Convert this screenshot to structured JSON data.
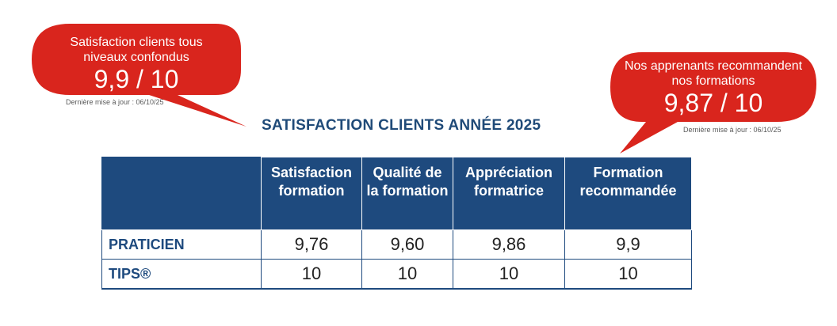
{
  "bubbles": {
    "left": {
      "caption_line1": "Satisfaction clients tous",
      "caption_line2": "niveaux confondus",
      "score": "9,9 / 10",
      "update_note": "Dernière mise à jour : 06/10/25"
    },
    "right": {
      "caption_line1": "Nos apprenants recommandent",
      "caption_line2": "nos formations",
      "score": "9,87 / 10",
      "update_note": "Dernière mise à jour : 06/10/25"
    }
  },
  "title": "SATISFACTION CLIENTS ANNÉE  2025",
  "table": {
    "headers": [
      "",
      "Satisfaction formation",
      "Qualité de la formation",
      "Appréciation formatrice",
      "Formation recommandée"
    ],
    "rows": [
      {
        "label": "PRATICIEN",
        "values": [
          "9,76",
          "9,60",
          "9,86",
          "9,9"
        ]
      },
      {
        "label": "TIPS®",
        "values": [
          "10",
          "10",
          "10",
          "10"
        ]
      }
    ]
  },
  "colors": {
    "bubble_red": "#d9251d",
    "header_blue": "#1e4a7e",
    "title_blue": "#1f4a78"
  }
}
